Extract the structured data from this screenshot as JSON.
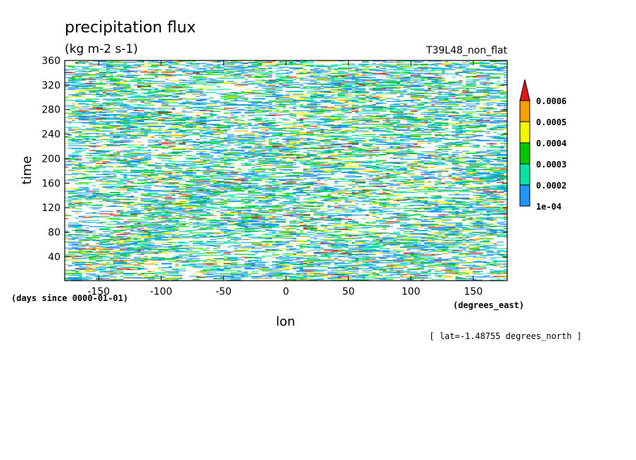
{
  "chart_data": {
    "type": "heatmap",
    "title": "precipitation flux",
    "units": "(kg m-2 s-1)",
    "experiment": "T39L48_non_flat",
    "xlabel": "lon",
    "x_units": "(degrees_east)",
    "ylabel": "time",
    "y_units": "(days since 0000-01-01)",
    "subset_note": "[ lat=-1.48755 degrees_north ]",
    "xlim": [
      -177.1875,
      177.1875
    ],
    "ylim": [
      1,
      360
    ],
    "x_ticks": [
      -150,
      -100,
      -50,
      0,
      50,
      100,
      150
    ],
    "x_tick_labels": [
      "-150",
      "-100",
      "-50",
      "0",
      "50",
      "100",
      "150"
    ],
    "y_ticks": [
      40,
      80,
      120,
      160,
      200,
      240,
      280,
      320,
      360
    ],
    "y_tick_labels": [
      "40",
      "80",
      "120",
      "160",
      "200",
      "240",
      "280",
      "320",
      "360"
    ],
    "colorbar": {
      "levels": [
        0.0001,
        0.0002,
        0.0003,
        0.0004,
        0.0005,
        0.0006
      ],
      "level_labels": [
        "1e-04",
        "0.0002",
        "0.0003",
        "0.0004",
        "0.0005",
        "0.0006"
      ],
      "colors": [
        "#1e96ff",
        "#00e6a0",
        "#00c800",
        "#f5f500",
        "#f5a000",
        "#e61414"
      ],
      "extend": "max"
    }
  }
}
